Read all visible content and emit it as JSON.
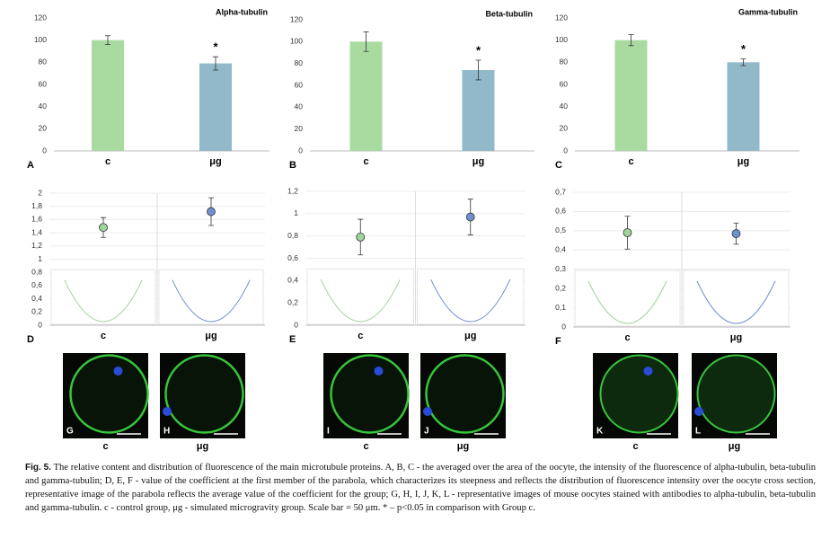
{
  "chart_data": [
    {
      "type": "bar",
      "panel": "A",
      "title": "Alpha-tubulin",
      "categories": [
        "c",
        "μg"
      ],
      "values": [
        100,
        79
      ],
      "errors": [
        4,
        6
      ],
      "colors": [
        "#a9dba0",
        "#92b9c9"
      ],
      "annotations": [
        {
          "text": "*",
          "category": "μg"
        }
      ],
      "ylim": [
        0,
        120
      ],
      "yticks": [
        0,
        20,
        40,
        60,
        80,
        100,
        120
      ],
      "grid": false
    },
    {
      "type": "bar",
      "panel": "B",
      "title": "Beta-tubulin",
      "categories": [
        "c",
        "μg"
      ],
      "values": [
        100,
        74
      ],
      "errors": [
        9,
        9
      ],
      "colors": [
        "#a9dba0",
        "#92b9c9"
      ],
      "annotations": [
        {
          "text": "*",
          "category": "μg"
        }
      ],
      "ylim": [
        0,
        120
      ],
      "yticks": [
        0,
        20,
        40,
        60,
        80,
        100,
        120
      ],
      "grid": false
    },
    {
      "type": "bar",
      "panel": "C",
      "title": "Gamma-tubulin",
      "categories": [
        "c",
        "μg"
      ],
      "values": [
        100,
        80
      ],
      "errors": [
        5,
        3
      ],
      "colors": [
        "#a9dba0",
        "#92b9c9"
      ],
      "annotations": [
        {
          "text": "*",
          "category": "μg"
        }
      ],
      "ylim": [
        0,
        120
      ],
      "yticks": [
        0,
        20,
        40,
        60,
        80,
        100,
        120
      ],
      "grid": false
    },
    {
      "type": "scatter",
      "panel": "D",
      "categories": [
        "c",
        "μg"
      ],
      "values": [
        1.48,
        1.72
      ],
      "errors": [
        0.15,
        0.21
      ],
      "colors": [
        "#9fd49a",
        "#6f8fcf"
      ],
      "ylim": [
        0,
        2
      ],
      "yticks": [
        0,
        {
          "value": 0.2,
          "label": "0,2"
        },
        {
          "value": 0.4,
          "label": "0,4"
        },
        {
          "value": 0.6,
          "label": "0,6"
        },
        {
          "value": 0.8,
          "label": "0,8"
        },
        1,
        {
          "value": 1.2,
          "label": "1,2"
        },
        {
          "value": 1.4,
          "label": "1,4"
        },
        {
          "value": 1.6,
          "label": "1,6"
        },
        {
          "value": 1.8,
          "label": "1,8"
        },
        2
      ],
      "grid": true
    },
    {
      "type": "scatter",
      "panel": "E",
      "categories": [
        "c",
        "μg"
      ],
      "values": [
        0.79,
        0.97
      ],
      "errors": [
        0.16,
        0.16
      ],
      "colors": [
        "#9fd49a",
        "#6f8fcf"
      ],
      "ylim": [
        0,
        1.2
      ],
      "yticks": [
        0,
        {
          "value": 0.2,
          "label": "0,2"
        },
        {
          "value": 0.4,
          "label": "0,4"
        },
        {
          "value": 0.6,
          "label": "0,6"
        },
        {
          "value": 0.8,
          "label": "0,8"
        },
        1,
        {
          "value": 1.2,
          "label": "1,2"
        }
      ],
      "grid": true
    },
    {
      "type": "scatter",
      "panel": "F",
      "categories": [
        "c",
        "μg"
      ],
      "values": [
        0.49,
        0.485
      ],
      "errors": [
        0.085,
        0.055
      ],
      "colors": [
        "#9fd49a",
        "#6f8fcf"
      ],
      "ylim": [
        0,
        0.7
      ],
      "yticks": [
        0,
        {
          "value": 0.1,
          "label": "0,1"
        },
        {
          "value": 0.2,
          "label": "0,2"
        },
        {
          "value": 0.3,
          "label": "0,3"
        },
        {
          "value": 0.4,
          "label": "0,4"
        },
        {
          "value": 0.5,
          "label": "0,5"
        },
        {
          "value": 0.6,
          "label": "0,6"
        },
        {
          "value": 0.7,
          "label": "0,7"
        }
      ],
      "grid": true
    }
  ],
  "images": [
    {
      "panel": "G",
      "label": "c"
    },
    {
      "panel": "H",
      "label": "μg"
    },
    {
      "panel": "I",
      "label": "c"
    },
    {
      "panel": "J",
      "label": "μg"
    },
    {
      "panel": "K",
      "label": "c"
    },
    {
      "panel": "L",
      "label": "μg"
    }
  ],
  "caption": {
    "label": "Fig. 5.",
    "text": "The relative content and distribution of fluorescence of the main microtubule proteins. A, B, C - the averaged over the area of the oocyte, the intensity of the fluorescence of alpha-tubulin, beta-tubulin and gamma-tubulin; D, E, F - value of the coefficient at the first member of the parabola, which characterizes its steepness and reflects the distribution of fluorescence intensity over the oocyte cross section, representative image of the parabola reflects the average value of the coefficient for the group; G, H, I, J, K, L - representative images of mouse oocytes stained with antibodies to alpha-tubulin, beta-tubulin and gamma-tubulin. c - control group, μg - simulated microgravity group. Scale bar = 50 μm. * – p<0.05 in comparison with Group c."
  }
}
